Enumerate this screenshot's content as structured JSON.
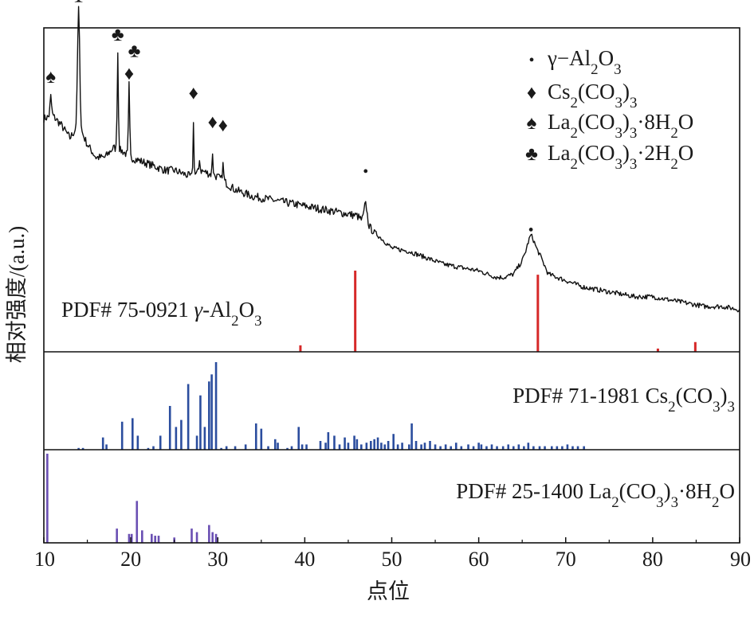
{
  "chart_data": {
    "type": "line",
    "xlabel": "点位",
    "ylabel": "相对强度/(a.u.)",
    "xlim": [
      10,
      90
    ],
    "x_ticks": [
      "10",
      "20",
      "30",
      "40",
      "50",
      "60",
      "70",
      "80",
      "90"
    ],
    "x_tick_values": [
      10,
      20,
      30,
      40,
      50,
      60,
      70,
      80,
      90
    ],
    "panels": [
      {
        "id": "sample",
        "type": "line",
        "legend_position": "top-right",
        "legend": [
          {
            "symbol": "•",
            "pre": "γ−Al",
            "s1": "2",
            "mid": "O",
            "s2": "3",
            "post": "",
            "s3": "",
            "tail": "",
            "s4": "",
            "end": ""
          },
          {
            "symbol": "♦",
            "pre": "Cs",
            "s1": "2",
            "mid": "(CO",
            "s2": "3",
            "post": ")",
            "s3": "3",
            "tail": "",
            "s4": "",
            "end": ""
          },
          {
            "symbol": "♠",
            "pre": "La",
            "s1": "2",
            "mid": "(CO",
            "s2": "3",
            "post": ")",
            "s3": "3",
            "tail": "·8H",
            "s4": "2",
            "end": "O"
          },
          {
            "symbol": "♣",
            "pre": "La",
            "s1": "2",
            "mid": "(CO",
            "s2": "3",
            "post": ")",
            "s3": "3",
            "tail": "·2H",
            "s4": "2",
            "end": "O"
          }
        ],
        "series": [
          {
            "baseline": [
              [
                10,
                0.72
              ],
              [
                11,
                0.73
              ],
              [
                12,
                0.7
              ],
              [
                13,
                0.66
              ],
              [
                14,
                0.7
              ],
              [
                15,
                0.64
              ],
              [
                16,
                0.6
              ],
              [
                17,
                0.6
              ],
              [
                18,
                0.63
              ],
              [
                19,
                0.62
              ],
              [
                20,
                0.6
              ],
              [
                21,
                0.59
              ],
              [
                22,
                0.58
              ],
              [
                23,
                0.57
              ],
              [
                24,
                0.56
              ],
              [
                25,
                0.56
              ],
              [
                26,
                0.55
              ],
              [
                27,
                0.54
              ],
              [
                28,
                0.56
              ],
              [
                29,
                0.55
              ],
              [
                30,
                0.54
              ],
              [
                32,
                0.5
              ],
              [
                34,
                0.48
              ],
              [
                36,
                0.47
              ],
              [
                38,
                0.46
              ],
              [
                40,
                0.45
              ],
              [
                42,
                0.44
              ],
              [
                44,
                0.43
              ],
              [
                46,
                0.42
              ],
              [
                48,
                0.37
              ],
              [
                50,
                0.32
              ],
              [
                52,
                0.31
              ],
              [
                54,
                0.29
              ],
              [
                56,
                0.27
              ],
              [
                58,
                0.26
              ],
              [
                60,
                0.25
              ],
              [
                62,
                0.23
              ],
              [
                63,
                0.23
              ],
              [
                64,
                0.24
              ],
              [
                65,
                0.28
              ],
              [
                66,
                0.33
              ],
              [
                67,
                0.3
              ],
              [
                68,
                0.24
              ],
              [
                70,
                0.22
              ],
              [
                72,
                0.2
              ],
              [
                74,
                0.19
              ],
              [
                76,
                0.18
              ],
              [
                78,
                0.17
              ],
              [
                80,
                0.17
              ],
              [
                82,
                0.16
              ],
              [
                84,
                0.15
              ],
              [
                86,
                0.14
              ],
              [
                88,
                0.14
              ],
              [
                90,
                0.13
              ]
            ],
            "peaks": [
              [
                10.8,
                0.06,
                0.12
              ],
              [
                14.0,
                0.36,
                0.18
              ],
              [
                18.5,
                0.3,
                0.1
              ],
              [
                19.8,
                0.22,
                0.1
              ],
              [
                27.2,
                0.16,
                0.08
              ],
              [
                27.9,
                0.04,
                0.08
              ],
              [
                29.4,
                0.07,
                0.08
              ],
              [
                30.6,
                0.05,
                0.1
              ],
              [
                47.0,
                0.06,
                0.25
              ],
              [
                66.0,
                0.03,
                0.6
              ]
            ],
            "noise": 0.025
          }
        ],
        "markers": [
          {
            "symbol": "♠",
            "x": 10.8,
            "y": 0.85
          },
          {
            "symbol": "♣",
            "x": 14.0,
            "y": 1.1
          },
          {
            "symbol": "♣",
            "x": 18.5,
            "y": 0.98
          },
          {
            "symbol": "♦",
            "x": 19.8,
            "y": 0.86
          },
          {
            "symbol": "♣",
            "x": 20.4,
            "y": 0.93
          },
          {
            "symbol": "♦",
            "x": 27.2,
            "y": 0.8
          },
          {
            "symbol": "♦",
            "x": 29.4,
            "y": 0.71
          },
          {
            "symbol": "♦",
            "x": 30.6,
            "y": 0.7
          },
          {
            "symbol": "•",
            "x": 47.0,
            "y": 0.56
          },
          {
            "symbol": "•",
            "x": 66.0,
            "y": 0.38
          }
        ]
      },
      {
        "id": "pdf-75-0921",
        "type": "bar",
        "label_parts": {
          "pre": "PDF# 75-0921 ",
          "phase": "γ",
          "rest": "-Al",
          "s1": "2",
          "mid": "O",
          "s2": "3",
          "post": "",
          "s3": "",
          "tail": "",
          "s4": "",
          "end": ""
        },
        "color": "#d62828",
        "sticks": [
          [
            39.5,
            8
          ],
          [
            45.8,
            100
          ],
          [
            66.8,
            95
          ],
          [
            80.6,
            4
          ],
          [
            84.9,
            12
          ]
        ]
      },
      {
        "id": "pdf-71-1981",
        "type": "bar",
        "label_parts": {
          "pre": "PDF# 71-1981 Cs",
          "phase": "",
          "rest": "",
          "s1": "2",
          "mid": "(CO",
          "s2": "3",
          "post": ")",
          "s3": "3",
          "tail": "",
          "s4": "",
          "end": ""
        },
        "color": "#2b4d9e",
        "sticks": [
          [
            14.0,
            2
          ],
          [
            14.5,
            2
          ],
          [
            16.8,
            14
          ],
          [
            17.2,
            6
          ],
          [
            19.0,
            32
          ],
          [
            20.2,
            36
          ],
          [
            20.8,
            16
          ],
          [
            22.0,
            2
          ],
          [
            22.6,
            4
          ],
          [
            23.4,
            16
          ],
          [
            24.5,
            50
          ],
          [
            25.2,
            26
          ],
          [
            25.8,
            34
          ],
          [
            26.6,
            75
          ],
          [
            27.6,
            16
          ],
          [
            28.0,
            62
          ],
          [
            28.5,
            26
          ],
          [
            29.0,
            78
          ],
          [
            29.3,
            86
          ],
          [
            29.8,
            100
          ],
          [
            30.4,
            2
          ],
          [
            31.0,
            4
          ],
          [
            32.0,
            4
          ],
          [
            33.2,
            6
          ],
          [
            34.4,
            30
          ],
          [
            35.0,
            24
          ],
          [
            35.8,
            4
          ],
          [
            36.6,
            12
          ],
          [
            36.9,
            8
          ],
          [
            38.0,
            2
          ],
          [
            38.5,
            4
          ],
          [
            39.3,
            26
          ],
          [
            39.7,
            6
          ],
          [
            40.2,
            6
          ],
          [
            41.8,
            10
          ],
          [
            42.4,
            8
          ],
          [
            42.7,
            20
          ],
          [
            43.4,
            16
          ],
          [
            44.0,
            6
          ],
          [
            44.6,
            14
          ],
          [
            45.0,
            8
          ],
          [
            45.7,
            16
          ],
          [
            46.0,
            12
          ],
          [
            46.5,
            6
          ],
          [
            47.1,
            8
          ],
          [
            47.6,
            10
          ],
          [
            48.0,
            12
          ],
          [
            48.4,
            14
          ],
          [
            48.8,
            8
          ],
          [
            49.2,
            6
          ],
          [
            49.6,
            10
          ],
          [
            50.2,
            18
          ],
          [
            50.7,
            6
          ],
          [
            51.2,
            8
          ],
          [
            52.0,
            6
          ],
          [
            52.3,
            30
          ],
          [
            52.8,
            10
          ],
          [
            53.4,
            6
          ],
          [
            53.8,
            8
          ],
          [
            54.4,
            10
          ],
          [
            55.0,
            6
          ],
          [
            55.6,
            4
          ],
          [
            56.2,
            6
          ],
          [
            56.8,
            4
          ],
          [
            57.4,
            8
          ],
          [
            58.0,
            4
          ],
          [
            58.8,
            6
          ],
          [
            59.4,
            4
          ],
          [
            60.0,
            8
          ],
          [
            60.3,
            6
          ],
          [
            60.9,
            4
          ],
          [
            61.5,
            6
          ],
          [
            62.1,
            4
          ],
          [
            62.8,
            4
          ],
          [
            63.4,
            6
          ],
          [
            64.0,
            4
          ],
          [
            64.6,
            6
          ],
          [
            65.2,
            4
          ],
          [
            65.7,
            8
          ],
          [
            66.3,
            4
          ],
          [
            67.0,
            4
          ],
          [
            67.6,
            4
          ],
          [
            68.4,
            4
          ],
          [
            69.0,
            4
          ],
          [
            69.6,
            4
          ],
          [
            70.2,
            6
          ],
          [
            70.8,
            4
          ],
          [
            71.4,
            4
          ],
          [
            72.1,
            4
          ]
        ]
      },
      {
        "id": "pdf-25-1400",
        "type": "bar",
        "label_parts": {
          "pre": "PDF# 25-1400 La",
          "phase": "",
          "rest": "",
          "s1": "2",
          "mid": "(CO",
          "s2": "3",
          "post": ")",
          "s3": "3",
          "tail": "·8H",
          "s4": "2",
          "end": "O"
        },
        "color": "#6a4fb3",
        "sticks": [
          [
            10.4,
            100
          ],
          [
            18.4,
            16
          ],
          [
            19.8,
            10
          ],
          [
            20.1,
            10
          ],
          [
            20.7,
            47
          ],
          [
            21.3,
            14
          ],
          [
            22.4,
            10
          ],
          [
            22.8,
            8
          ],
          [
            23.2,
            8
          ],
          [
            25.0,
            6
          ],
          [
            27.0,
            16
          ],
          [
            27.6,
            12
          ],
          [
            29.0,
            20
          ],
          [
            29.4,
            12
          ],
          [
            29.8,
            10
          ]
        ]
      }
    ]
  }
}
